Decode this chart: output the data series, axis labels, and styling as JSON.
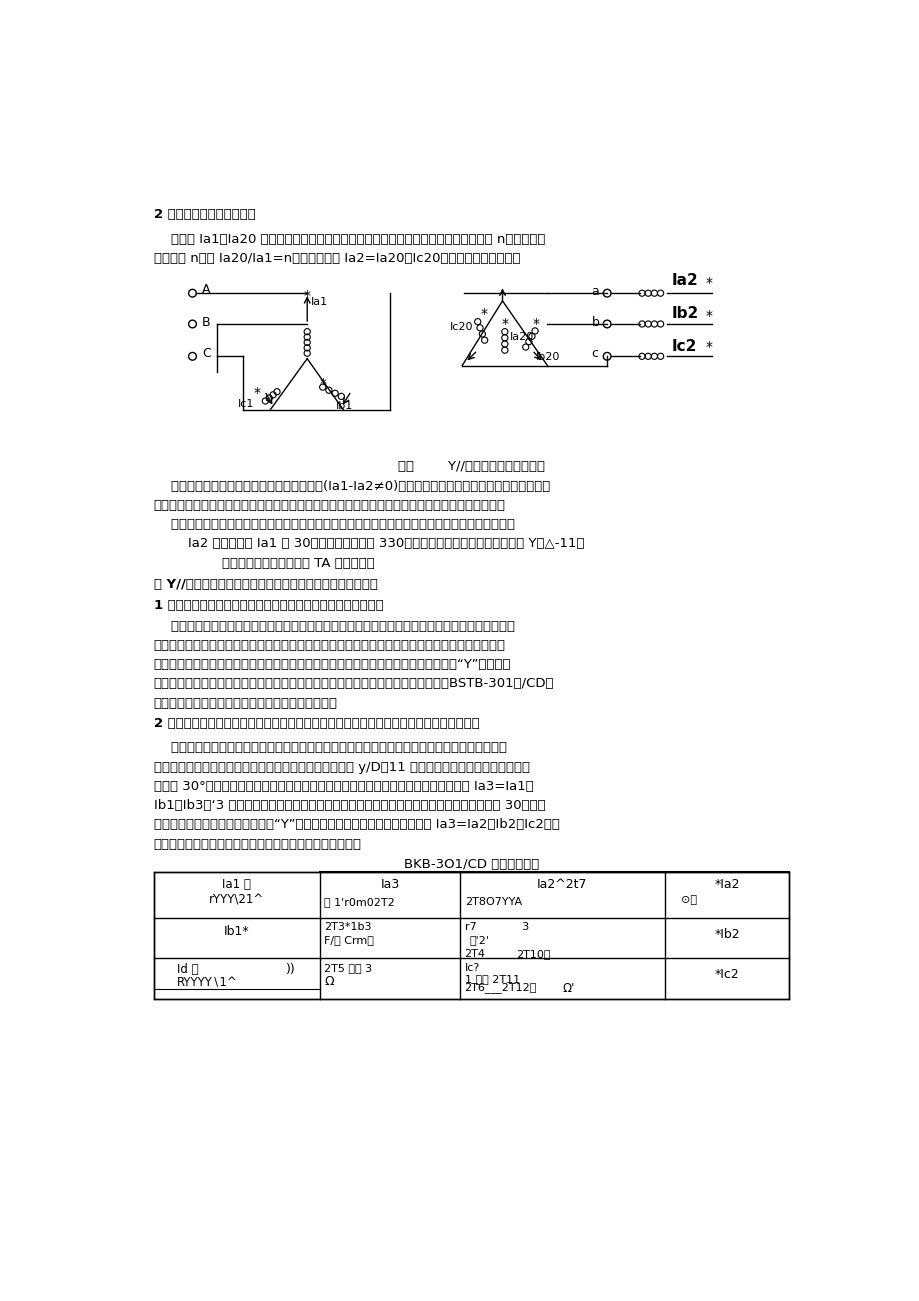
{
  "bg_color": "#ffffff",
  "text_color": "#000000",
  "page_width": 9.2,
  "page_height": 13.01,
  "title_section2": "2 变压器高低压侧电流变换",
  "para1": "    图四中 Ia1、Ia20 等分别为变压器按相电流变换示意图，如果变压器原副边匹数比为 n，即变压器",
  "para2": "的变比为 n，则 Ia20/Ia1=n，由图四可见 Ia2=Ia20－Ic20，并且发生相位变化，",
  "fig4_caption": "图四        Y//变压器电流变换示意图",
  "para3": "    显然两侧同相电流正常带负荷时将产生差流(Ia1-Ia2≠0)。两侧正常带对称负荷时原副边电流矢量图",
  "para4": "如图五所示。如果变压器原副边极性端标称按通用标准，指向变压器内部为正方向，带负荷时两侧电",
  "para5": "    流将反向，图五中向量图分析时为便于理解按负荷电流原副边同方向来表示，图五所示低压侧电流",
  "para6": "        Ia2 超前高压侧 Ia1 为 30。，或定义为落后 330。，此时变压器的绕组连接组别为 Y／△-11。",
  "para7": "                图五负荷状态下高低压侧 TA 向量示意图",
  "title_section3": "三 Y//型变压器高压与低压侧电流相位对差动电流计算的影响",
  "title_section3_1": "1 变压器高压与低压侧电流相位对差动电流计算影响的解决方案",
  "para8": "    由于变压器绕组连接组别不相同，高低压侧电流就会产生相位差，从而产生差流，差动保护必须采",
  "para9": "取措施解决。一般有两种解决方案，第一种方案是通过变压器高压侧或低压侧电流互感器的二次侧接",
  "para10": "线形式来进行相位调整；第二种方案是将变压器高压与低压侧电流互感器的二次侧均按“Y”形式接入",
  "para11": "差动保护装置，微机保护由软件通过计算方法来消除由于高低压侧相位差产生差流。BSTB-301（/CD）",
  "para12": "差动保护装置对这两种方法通过定値设置都能适应。",
  "title_section3_2": "2 通过电流互感器二次侧接线方式消除变压器高压与低压侧电流相位对差动电流计算的影响",
  "para13": "    图六为通过变压器高压侧或低压侧电流互感器的二次侧接线形式来进行相位调整的电流互感器二",
  "para14": "次侧接线图。从图中可以看出，变压器的绕组连接组别为 y/D－11 时，变压器高压侧与低压侧电流相",
  "para15": "位相差 30°，变压器高压侧电流互感器的二次侧为接线时，高压侧流入保护装置的电流 Ia3=Ia1－",
  "para16": "Ib1，Ib3、‘3 可以以此类推，变压器高压侧电流互感器一次侧与二次侧电流的相位就会相差 30。。变",
  "para17": "压器低压侧电流互感器的二次侧为“Y”接线时，低压侧流入保护装置的电流为 Ia3=Ia2，Ib2、Ic2，可",
  "para18": "以以此类推，变压器低压侧电流互感器一次侧与二次侧电流",
  "table_title": "BKB-3O1/CD 微机差动保护"
}
